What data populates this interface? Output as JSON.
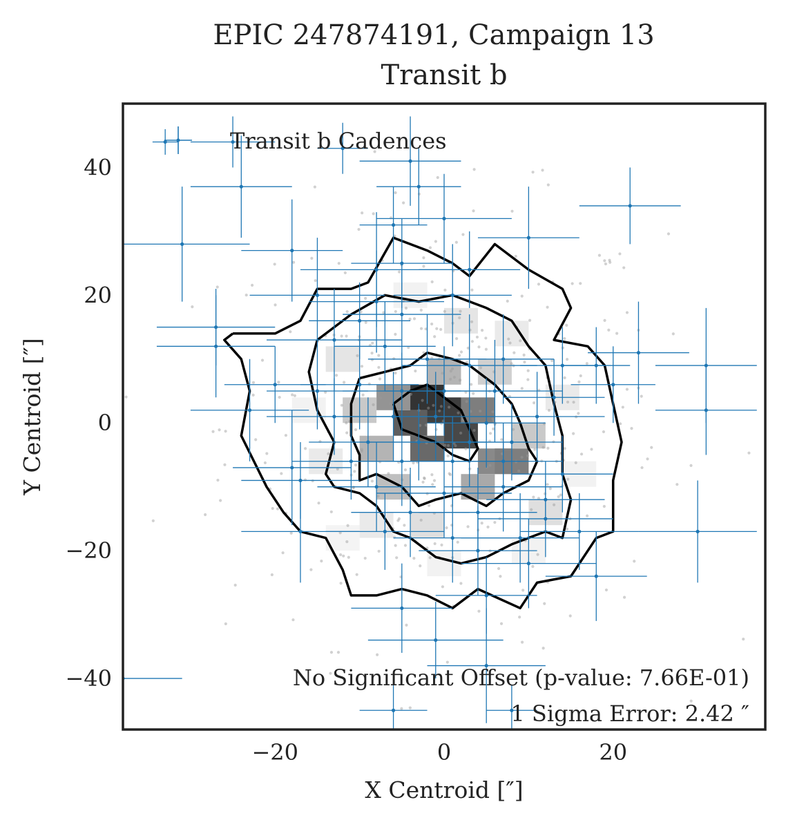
{
  "chart_data": {
    "type": "scatter",
    "title": "EPIC 247874191, Campaign 13",
    "subtitle": "Transit b",
    "xlabel": "X Centroid [″]",
    "ylabel": "Y Centroid [″]",
    "xlim": [
      -38,
      38
    ],
    "ylim": [
      -48,
      50
    ],
    "xticks": [
      -20,
      0,
      20
    ],
    "yticks": [
      40,
      20,
      0,
      -20,
      -40
    ],
    "xtick_labels": [
      "−20",
      "0",
      "20"
    ],
    "ytick_labels": [
      "40",
      "20",
      "0",
      "−20",
      "−40"
    ],
    "grid": false,
    "legend": {
      "label": "Transit b Cadences",
      "location": "top-left"
    },
    "annotations": {
      "offset_text": "No Significant Offset (p-value: 7.66E-01)",
      "sigma_text": "1 Sigma Error: 2.42 ″"
    },
    "colors": {
      "series": "#1f77b4",
      "contour": "#000000",
      "background_points": "#9a9a9a",
      "frame": "#222222"
    },
    "density": {
      "description": "2D histogram of out-of-transit centroid positions (grayscale) with density contours",
      "contour_levels": 4,
      "cells": [
        {
          "x": 0,
          "y": 2,
          "level": 0.9
        },
        {
          "x": -2,
          "y": 4,
          "level": 0.95
        },
        {
          "x": 2,
          "y": -2,
          "level": 0.85
        },
        {
          "x": -4,
          "y": 0,
          "level": 0.75
        },
        {
          "x": -2,
          "y": -4,
          "level": 0.7
        },
        {
          "x": 4,
          "y": 2,
          "level": 0.6
        },
        {
          "x": 6,
          "y": -6,
          "level": 0.55
        },
        {
          "x": 8,
          "y": -6,
          "level": 0.6
        },
        {
          "x": -6,
          "y": 4,
          "level": 0.5
        },
        {
          "x": -8,
          "y": -4,
          "level": 0.35
        },
        {
          "x": 4,
          "y": -10,
          "level": 0.4
        },
        {
          "x": 0,
          "y": 8,
          "level": 0.35
        },
        {
          "x": -10,
          "y": 2,
          "level": 0.25
        },
        {
          "x": 10,
          "y": -2,
          "level": 0.25
        },
        {
          "x": -6,
          "y": -10,
          "level": 0.3
        },
        {
          "x": 6,
          "y": 8,
          "level": 0.22
        },
        {
          "x": -12,
          "y": 10,
          "level": 0.12
        },
        {
          "x": 12,
          "y": -14,
          "level": 0.15
        },
        {
          "x": -2,
          "y": -16,
          "level": 0.15
        },
        {
          "x": 2,
          "y": 16,
          "level": 0.12
        },
        {
          "x": -14,
          "y": -6,
          "level": 0.1
        },
        {
          "x": 14,
          "y": 4,
          "level": 0.1
        },
        {
          "x": 8,
          "y": 14,
          "level": 0.1
        },
        {
          "x": -8,
          "y": -16,
          "level": 0.1
        },
        {
          "x": -16,
          "y": 2,
          "level": 0.06
        },
        {
          "x": 16,
          "y": -8,
          "level": 0.06
        },
        {
          "x": 0,
          "y": -22,
          "level": 0.06
        },
        {
          "x": -4,
          "y": 20,
          "level": 0.06
        },
        {
          "x": 10,
          "y": -20,
          "level": 0.06
        },
        {
          "x": -12,
          "y": -18,
          "level": 0.05
        }
      ],
      "contours": [
        [
          [
            -25,
            14
          ],
          [
            -20,
            14
          ],
          [
            -17,
            16
          ],
          [
            -15,
            21
          ],
          [
            -11,
            21
          ],
          [
            -9,
            22
          ],
          [
            -6,
            29
          ],
          [
            -2,
            27
          ],
          [
            1,
            25
          ],
          [
            3,
            23
          ],
          [
            6,
            28
          ],
          [
            10,
            24
          ],
          [
            14,
            21
          ],
          [
            15,
            18
          ],
          [
            13,
            13
          ],
          [
            17,
            12
          ],
          [
            19,
            9
          ],
          [
            20,
            3
          ],
          [
            21,
            -3
          ],
          [
            20,
            -9
          ],
          [
            20,
            -17
          ],
          [
            18,
            -18
          ],
          [
            15,
            -24
          ],
          [
            11,
            -25
          ],
          [
            9,
            -29
          ],
          [
            4,
            -26
          ],
          [
            1,
            -29
          ],
          [
            -2,
            -27
          ],
          [
            -5,
            -26
          ],
          [
            -8,
            -27
          ],
          [
            -11,
            -27
          ],
          [
            -12,
            -23
          ],
          [
            -14,
            -18
          ],
          [
            -17,
            -17
          ],
          [
            -19,
            -14
          ],
          [
            -21,
            -10
          ],
          [
            -24,
            -2
          ],
          [
            -23,
            5
          ],
          [
            -24,
            10
          ],
          [
            -26,
            13
          ],
          [
            -25,
            14
          ]
        ],
        [
          [
            -15,
            13
          ],
          [
            -13,
            15
          ],
          [
            -11,
            17
          ],
          [
            -7,
            20
          ],
          [
            -3,
            19
          ],
          [
            1,
            20
          ],
          [
            5,
            18
          ],
          [
            8,
            16
          ],
          [
            10,
            12
          ],
          [
            12,
            9
          ],
          [
            13,
            3
          ],
          [
            14,
            -2
          ],
          [
            14,
            -8
          ],
          [
            15,
            -12
          ],
          [
            14,
            -18
          ],
          [
            12,
            -17
          ],
          [
            8,
            -19
          ],
          [
            5,
            -21
          ],
          [
            2,
            -22
          ],
          [
            -1,
            -21
          ],
          [
            -4,
            -18
          ],
          [
            -6,
            -17
          ],
          [
            -8,
            -13
          ],
          [
            -10,
            -11
          ],
          [
            -13,
            -10
          ],
          [
            -14,
            -8
          ],
          [
            -13,
            -3
          ],
          [
            -15,
            2
          ],
          [
            -16,
            8
          ],
          [
            -15,
            13
          ]
        ],
        [
          [
            -10,
            7
          ],
          [
            -7,
            8
          ],
          [
            -4,
            9
          ],
          [
            -2,
            11
          ],
          [
            1,
            10
          ],
          [
            3,
            9
          ],
          [
            6,
            6
          ],
          [
            8,
            3
          ],
          [
            9,
            0
          ],
          [
            10,
            -4
          ],
          [
            11,
            -6
          ],
          [
            10,
            -9
          ],
          [
            7,
            -11
          ],
          [
            5,
            -13
          ],
          [
            2,
            -11
          ],
          [
            -1,
            -12
          ],
          [
            -3,
            -13
          ],
          [
            -5,
            -10
          ],
          [
            -8,
            -8
          ],
          [
            -10,
            -9
          ],
          [
            -10,
            -5
          ],
          [
            -11,
            -2
          ],
          [
            -11,
            3
          ],
          [
            -10,
            7
          ]
        ],
        [
          [
            -6,
            3
          ],
          [
            -4,
            5
          ],
          [
            -2,
            6
          ],
          [
            0,
            4
          ],
          [
            2,
            2
          ],
          [
            3,
            -1
          ],
          [
            4,
            -4
          ],
          [
            3,
            -6
          ],
          [
            1,
            -5
          ],
          [
            -1,
            -3
          ],
          [
            -3,
            -2
          ],
          [
            -5,
            -1
          ],
          [
            -6,
            3
          ]
        ]
      ]
    },
    "background_points_count": 420,
    "series": [
      {
        "name": "Transit b Cadences",
        "points": [
          {
            "x": -33,
            "y": 44,
            "xerr": 1.5,
            "yerr": 2
          },
          {
            "x": -25,
            "y": 44,
            "xerr": 5,
            "yerr": 4
          },
          {
            "x": -12,
            "y": 43,
            "xerr": 3,
            "yerr": 4
          },
          {
            "x": -24,
            "y": 37,
            "xerr": 6,
            "yerr": 8
          },
          {
            "x": -4,
            "y": 41,
            "xerr": 6,
            "yerr": 7
          },
          {
            "x": -3,
            "y": 37,
            "xerr": 5,
            "yerr": 6
          },
          {
            "x": 22,
            "y": 34,
            "xerr": 6,
            "yerr": 6
          },
          {
            "x": -31,
            "y": 28,
            "xerr": 8,
            "yerr": 9
          },
          {
            "x": 10,
            "y": 29,
            "xerr": 6,
            "yerr": 8
          },
          {
            "x": 0,
            "y": 32,
            "xerr": 8,
            "yerr": 7
          },
          {
            "x": -6,
            "y": 31,
            "xerr": 4,
            "yerr": 6
          },
          {
            "x": -18,
            "y": 27,
            "xerr": 6,
            "yerr": 8
          },
          {
            "x": -5,
            "y": 25,
            "xerr": 6,
            "yerr": 7
          },
          {
            "x": 3,
            "y": 24,
            "xerr": 6,
            "yerr": 6
          },
          {
            "x": -8,
            "y": 24,
            "xerr": 9,
            "yerr": 9
          },
          {
            "x": -15,
            "y": 20,
            "xerr": 8,
            "yerr": 9
          },
          {
            "x": 1,
            "y": 20,
            "xerr": 7,
            "yerr": 8
          },
          {
            "x": -8,
            "y": 19,
            "xerr": 8,
            "yerr": 8
          },
          {
            "x": -5,
            "y": 17,
            "xerr": 7,
            "yerr": 7
          },
          {
            "x": -10,
            "y": 16,
            "xerr": 6,
            "yerr": 6
          },
          {
            "x": -27,
            "y": 15,
            "xerr": 7,
            "yerr": 6
          },
          {
            "x": -27,
            "y": 12,
            "xerr": 7,
            "yerr": 8
          },
          {
            "x": -13,
            "y": 13,
            "xerr": 8,
            "yerr": 8
          },
          {
            "x": -7,
            "y": 12,
            "xerr": 6,
            "yerr": 7
          },
          {
            "x": -2,
            "y": 10,
            "xerr": 7,
            "yerr": 7
          },
          {
            "x": 3,
            "y": 9,
            "xerr": 8,
            "yerr": 8
          },
          {
            "x": 7,
            "y": 10,
            "xerr": 6,
            "yerr": 7
          },
          {
            "x": 14,
            "y": 9,
            "xerr": 5,
            "yerr": 6
          },
          {
            "x": 18,
            "y": 9,
            "xerr": 4,
            "yerr": 6
          },
          {
            "x": 23,
            "y": 11,
            "xerr": 6,
            "yerr": 8
          },
          {
            "x": 31,
            "y": 9,
            "xerr": 6,
            "yerr": 9
          },
          {
            "x": -20,
            "y": 6,
            "xerr": 6,
            "yerr": 6
          },
          {
            "x": -15,
            "y": 5,
            "xerr": 6,
            "yerr": 6
          },
          {
            "x": -10,
            "y": 6,
            "xerr": 7,
            "yerr": 7
          },
          {
            "x": -5,
            "y": 5,
            "xerr": 7,
            "yerr": 6
          },
          {
            "x": 0,
            "y": 5,
            "xerr": 7,
            "yerr": 7
          },
          {
            "x": 6,
            "y": 5,
            "xerr": 8,
            "yerr": 8
          },
          {
            "x": 13,
            "y": 4,
            "xerr": 6,
            "yerr": 6
          },
          {
            "x": 20,
            "y": 6,
            "xerr": 5,
            "yerr": 6
          },
          {
            "x": -23,
            "y": 2,
            "xerr": 7,
            "yerr": 8
          },
          {
            "x": -13,
            "y": 1,
            "xerr": 8,
            "yerr": 6
          },
          {
            "x": -6,
            "y": 1,
            "xerr": 7,
            "yerr": 7
          },
          {
            "x": -1,
            "y": 1,
            "xerr": 7,
            "yerr": 7
          },
          {
            "x": 5,
            "y": 0,
            "xerr": 7,
            "yerr": 7
          },
          {
            "x": 11,
            "y": 1,
            "xerr": 8,
            "yerr": 7
          },
          {
            "x": 31,
            "y": 2,
            "xerr": 6,
            "yerr": 7
          },
          {
            "x": -9,
            "y": -3,
            "xerr": 7,
            "yerr": 7
          },
          {
            "x": -3,
            "y": -3,
            "xerr": 8,
            "yerr": 6
          },
          {
            "x": 3,
            "y": -3,
            "xerr": 7,
            "yerr": 7
          },
          {
            "x": 8,
            "y": -3,
            "xerr": 6,
            "yerr": 6
          },
          {
            "x": -18,
            "y": -7,
            "xerr": 7,
            "yerr": 9
          },
          {
            "x": -11,
            "y": -6,
            "xerr": 7,
            "yerr": 6
          },
          {
            "x": -5,
            "y": -6,
            "xerr": 8,
            "yerr": 7
          },
          {
            "x": 1,
            "y": -6,
            "xerr": 8,
            "yerr": 7
          },
          {
            "x": 7,
            "y": -6,
            "xerr": 7,
            "yerr": 6
          },
          {
            "x": 14,
            "y": -8,
            "xerr": 6,
            "yerr": 6
          },
          {
            "x": -17,
            "y": -9,
            "xerr": 7,
            "yerr": 6
          },
          {
            "x": -8,
            "y": -10,
            "xerr": 7,
            "yerr": 7
          },
          {
            "x": 0,
            "y": -11,
            "xerr": 8,
            "yerr": 7
          },
          {
            "x": 7,
            "y": -10,
            "xerr": 7,
            "yerr": 7
          },
          {
            "x": 12,
            "y": -12,
            "xerr": 7,
            "yerr": 6
          },
          {
            "x": -4,
            "y": -14,
            "xerr": 7,
            "yerr": 7
          },
          {
            "x": 4,
            "y": -14,
            "xerr": 7,
            "yerr": 7
          },
          {
            "x": 12,
            "y": -15,
            "xerr": 8,
            "yerr": 6
          },
          {
            "x": -17,
            "y": -17,
            "xerr": 7,
            "yerr": 8
          },
          {
            "x": -7,
            "y": -17,
            "xerr": 7,
            "yerr": 6
          },
          {
            "x": 1,
            "y": -18,
            "xerr": 7,
            "yerr": 7
          },
          {
            "x": 9,
            "y": -18,
            "xerr": 7,
            "yerr": 7
          },
          {
            "x": 16,
            "y": -17,
            "xerr": 7,
            "yerr": 6
          },
          {
            "x": 30,
            "y": -17,
            "xerr": 7,
            "yerr": 8
          },
          {
            "x": 4,
            "y": -20,
            "xerr": 7,
            "yerr": 7
          },
          {
            "x": 10,
            "y": -22,
            "xerr": 8,
            "yerr": 7
          },
          {
            "x": 18,
            "y": -24,
            "xerr": 6,
            "yerr": 7
          },
          {
            "x": 5,
            "y": -27,
            "xerr": 6,
            "yerr": 6
          },
          {
            "x": -5,
            "y": -29,
            "xerr": 6,
            "yerr": 7
          },
          {
            "x": -1,
            "y": -34,
            "xerr": 8,
            "yerr": 6
          },
          {
            "x": 5,
            "y": -38,
            "xerr": 7,
            "yerr": 9
          },
          {
            "x": -38,
            "y": -40,
            "xerr": 7,
            "yerr": 6
          },
          {
            "x": -6,
            "y": -45,
            "xerr": 4,
            "yerr": 4
          },
          {
            "x": 8,
            "y": -45,
            "xerr": 3,
            "yerr": 4
          }
        ]
      }
    ]
  }
}
